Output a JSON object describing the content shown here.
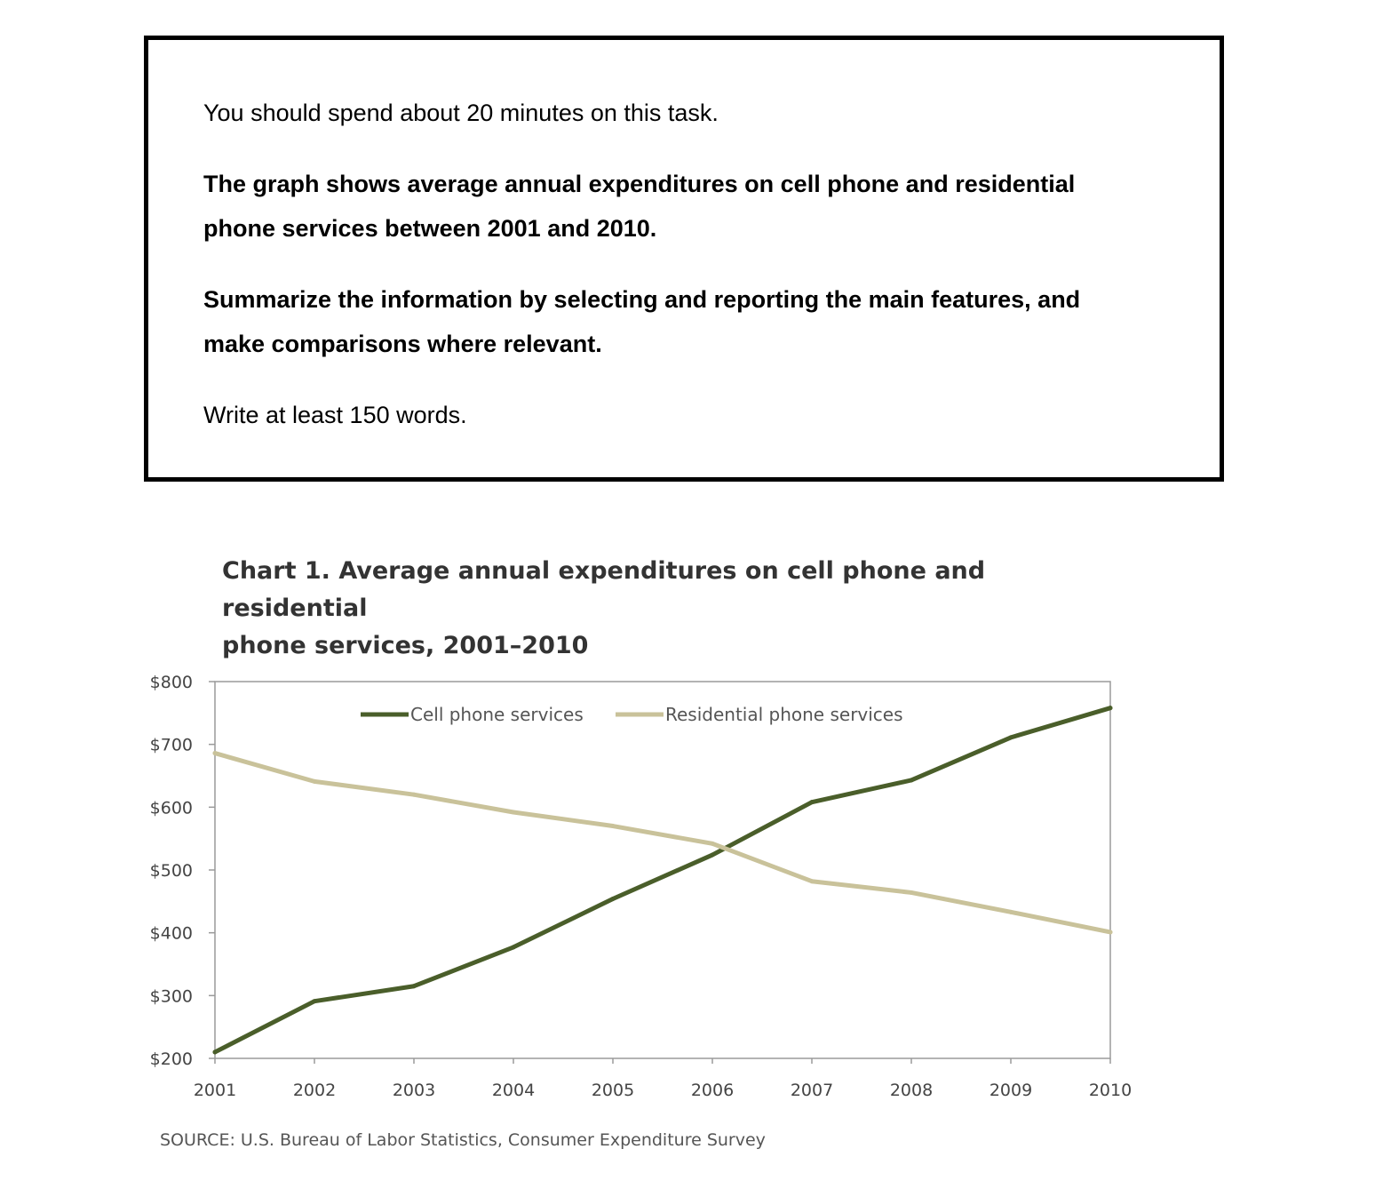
{
  "task": {
    "time_instruction": "You should spend about 20 minutes on this task.",
    "description_line1": "The graph shows average annual expenditures on cell phone and residential",
    "description_line2": "phone services between 2001 and 2010.",
    "instruction_line1": "Summarize the information by selecting and reporting the main features, and",
    "instruction_line2": "make comparisons where relevant.",
    "word_count": "Write at least 150 words."
  },
  "chart_data": {
    "type": "line",
    "title_line1": "Chart 1.  Average annual  expenditures on cell phone and residential",
    "title_line2": "phone services, 2001–2010",
    "x": [
      "2001",
      "2002",
      "2003",
      "2004",
      "2005",
      "2006",
      "2007",
      "2008",
      "2009",
      "2010"
    ],
    "y_tick_labels": [
      "$800",
      "$700",
      "$600",
      "$500",
      "$400",
      "$300",
      "$200"
    ],
    "ylim": [
      200,
      800
    ],
    "series": [
      {
        "name": "Cell phone services",
        "color": "#4a5e2a",
        "values": [
          210,
          291,
          315,
          377,
          454,
          524,
          608,
          643,
          711,
          758
        ]
      },
      {
        "name": "Residential phone services",
        "color": "#c9c29a",
        "values": [
          686,
          641,
          620,
          592,
          570,
          542,
          482,
          464,
          433,
          401
        ]
      }
    ],
    "legend_position": "top-center",
    "grid": false,
    "source": "SOURCE: U.S. Bureau of Labor Statistics,  Consumer Expenditure Survey"
  }
}
